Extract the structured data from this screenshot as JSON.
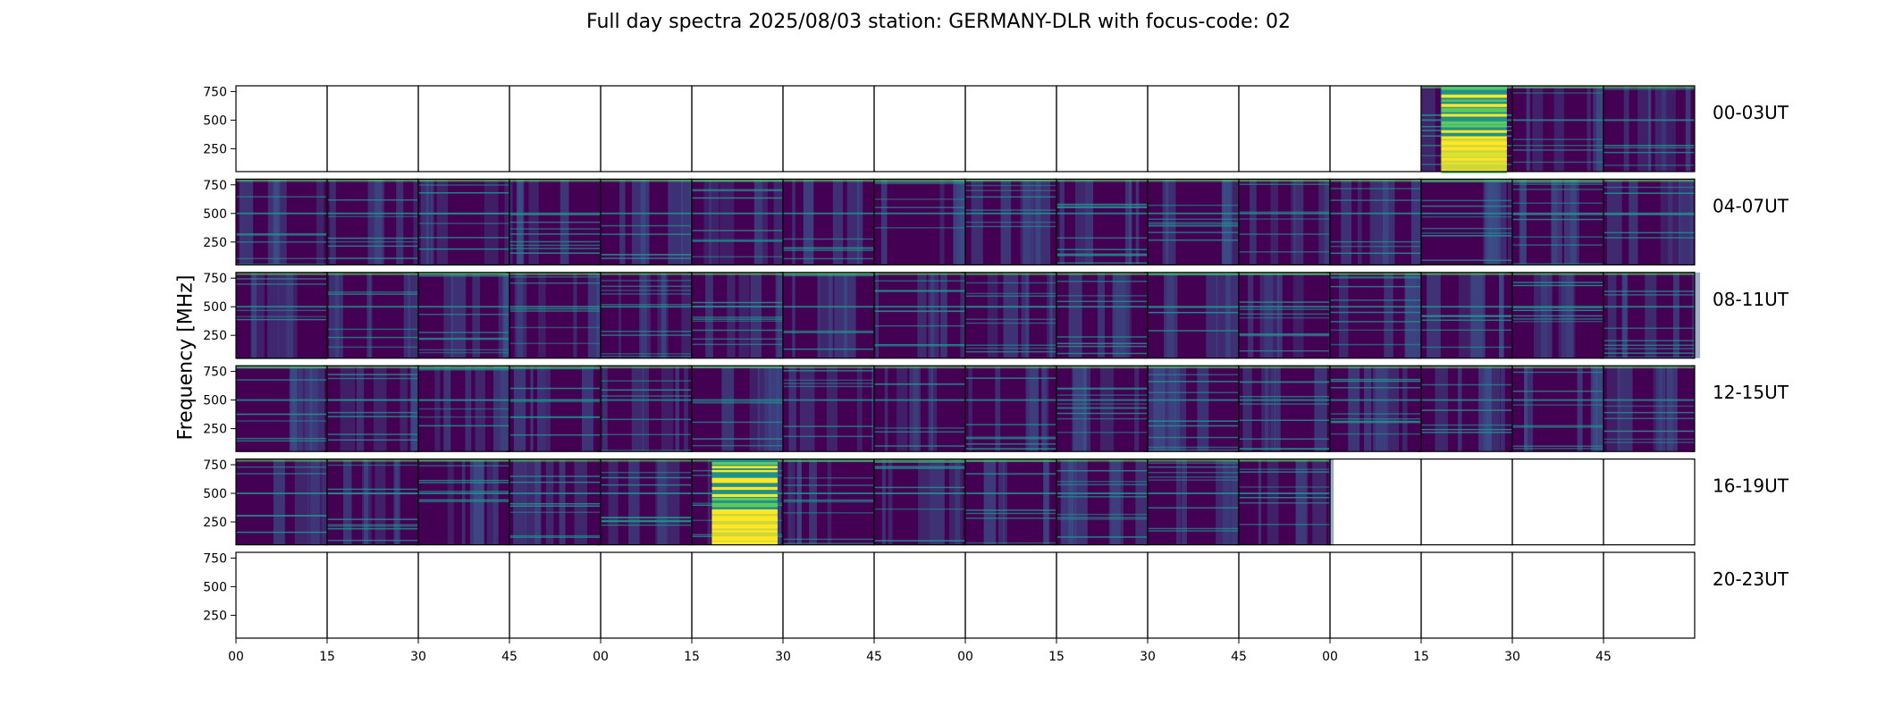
{
  "chart_data": {
    "type": "heatmap",
    "title": "Full day spectra 2025/08/03 station: GERMANY-DLR with focus-code: 02",
    "ylabel": "Frequency [MHz]",
    "xlabel": "",
    "y_ticks": [
      250,
      500,
      750
    ],
    "x_tick_labels": [
      "00",
      "15",
      "30",
      "45",
      "00",
      "15",
      "30",
      "45",
      "00",
      "15",
      "30",
      "45",
      "00",
      "15",
      "30",
      "45"
    ],
    "rows": [
      {
        "label": "00-03UT",
        "panels": [
          "empty",
          "empty",
          "empty",
          "empty",
          "empty",
          "empty",
          "empty",
          "empty",
          "empty",
          "empty",
          "empty",
          "empty",
          "empty",
          "burst",
          "normal",
          "normal"
        ]
      },
      {
        "label": "04-07UT",
        "panels": [
          "normal",
          "normal",
          "normal",
          "normal",
          "normal",
          "normal",
          "normal",
          "normal",
          "normal",
          "normal",
          "normal",
          "normal",
          "normal",
          "normal",
          "normal",
          "normal"
        ]
      },
      {
        "label": "08-11UT",
        "panels": [
          "normal",
          "normal",
          "normal",
          "normal",
          "normal",
          "normal",
          "normal",
          "normal",
          "normal",
          "normal",
          "normal",
          "normal",
          "normal",
          "normal",
          "normal",
          "normal"
        ]
      },
      {
        "label": "12-15UT",
        "panels": [
          "normal",
          "normal",
          "normal",
          "normal",
          "normal",
          "normal",
          "normal",
          "normal",
          "normal",
          "normal",
          "normal",
          "normal",
          "normal",
          "normal",
          "normal",
          "normal"
        ]
      },
      {
        "label": "16-19UT",
        "panels": [
          "normal",
          "normal",
          "normal",
          "normal",
          "normal",
          "burst",
          "normal",
          "normal",
          "normal",
          "normal",
          "normal",
          "normal",
          "empty",
          "empty",
          "empty",
          "empty"
        ]
      },
      {
        "label": "20-23UT",
        "panels": [
          "empty",
          "empty",
          "empty",
          "empty",
          "empty",
          "empty",
          "empty",
          "empty",
          "empty",
          "empty",
          "empty",
          "empty",
          "empty",
          "empty",
          "empty",
          "empty"
        ]
      }
    ],
    "colormap": [
      "#440154",
      "#3b528b",
      "#21918c",
      "#5ec962",
      "#fde725"
    ],
    "grid": false
  }
}
